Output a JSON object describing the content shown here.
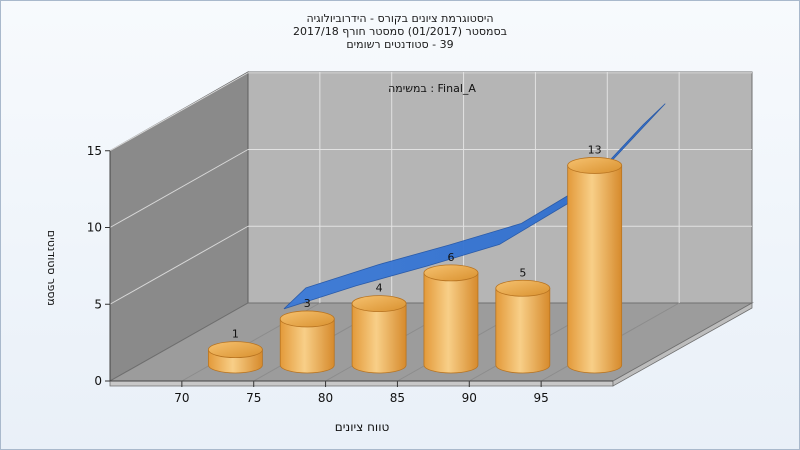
{
  "title_lines": [
    "היסטוגרמת ציונים בקורס - הידרוביולוגיה",
    "בסמסטר  (01/2017)  סמסטר חורף 2017/18",
    "39 - סטודנטים רשומים"
  ],
  "chart_data": {
    "type": "bar",
    "subtitle": "Final_A : במשימה",
    "xlabel": "טווח ציונים",
    "ylabel": "מספר סטודנטים",
    "x_ticks": [
      "70",
      "75",
      "80",
      "85",
      "90",
      "95"
    ],
    "y_ticks": [
      "0",
      "5",
      "10",
      "15"
    ],
    "ylim": [
      0,
      15
    ],
    "categories": [
      "70",
      "75",
      "80",
      "85",
      "90",
      "95"
    ],
    "values": [
      1,
      3,
      4,
      6,
      5,
      13
    ],
    "value_labels": [
      "1",
      "3",
      "4",
      "6",
      "5",
      "13"
    ],
    "trend_line": [
      3,
      4.5,
      5.8,
      7.2,
      10,
      15
    ],
    "bar_color": "#f0b25a",
    "trend_color": "#2f6fd1",
    "wall_back_color": "#b5b5b5",
    "wall_side_color": "#8a8a8a",
    "floor_color": "#9c9c9c",
    "grid": true
  }
}
